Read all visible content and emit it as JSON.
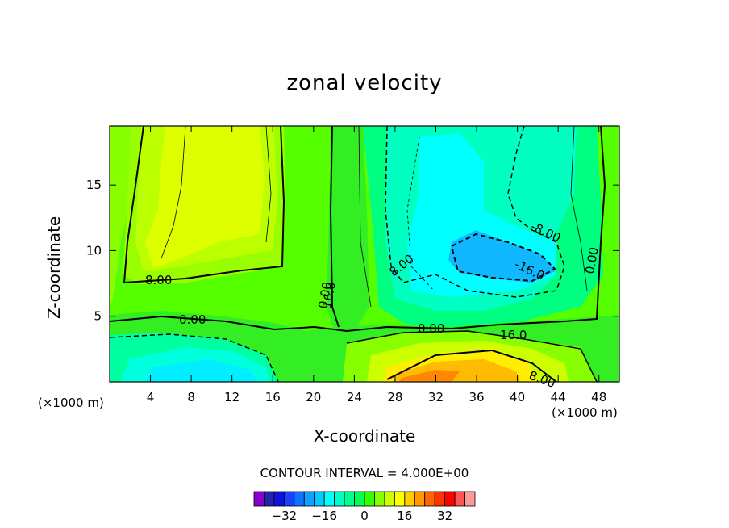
{
  "chart_data": {
    "type": "heatmap",
    "title": "zonal velocity",
    "xlabel": "X-coordinate",
    "ylabel": "Z-coordinate",
    "x_unit": "(×1000 m)",
    "xlim": [
      0,
      50
    ],
    "ylim": [
      0,
      19.5
    ],
    "x_ticks": [
      4,
      8,
      12,
      16,
      20,
      24,
      28,
      32,
      36,
      40,
      44,
      48
    ],
    "y_ticks": [
      5,
      10,
      15
    ],
    "contour_interval_text": "CONTOUR INTERVAL = 4.000E+00",
    "contour_labels": [
      "8.00",
      "0.00",
      "0.00",
      "8.00",
      "16.0",
      "0.00",
      "8.00",
      "-8.00",
      "-16.0",
      "0.00",
      "16.0"
    ],
    "colorbar": {
      "levels": [
        -36,
        -32,
        -28,
        -24,
        -20,
        -16,
        -12,
        -8,
        -4,
        0,
        4,
        8,
        12,
        16,
        20,
        24,
        28,
        32,
        36
      ],
      "colors": [
        "#8800cc",
        "#2222aa",
        "#1010dd",
        "#1a40ff",
        "#1070ff",
        "#10a0ff",
        "#00ccff",
        "#00ffff",
        "#00ffc8",
        "#00ff90",
        "#00ff55",
        "#33ff00",
        "#88ff00",
        "#ccff00",
        "#ffff00",
        "#ffcc00",
        "#ff9900",
        "#ff6600",
        "#ff3300",
        "#ff0000",
        "#ff5555",
        "#ff9999"
      ],
      "tick_labels": [
        "-32",
        "-16",
        "0",
        "16",
        "32"
      ],
      "tick_values": [
        -32,
        -16,
        0,
        16,
        32
      ]
    }
  }
}
